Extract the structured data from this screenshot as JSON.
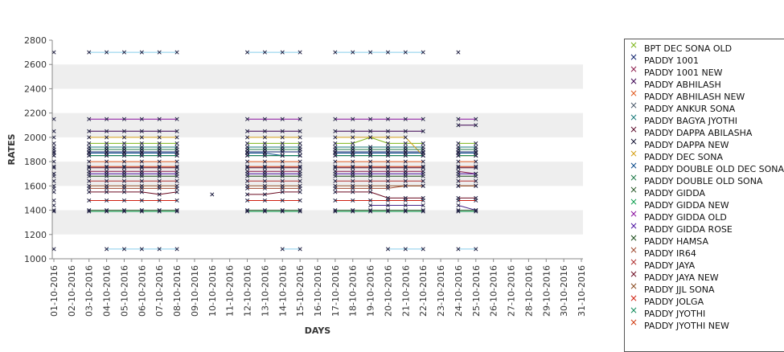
{
  "chart_data": {
    "type": "line",
    "xlabel": "DAYS",
    "ylabel": "RATES",
    "ylim": [
      1000,
      2800
    ],
    "yticks": [
      "1000",
      "1200",
      "1400",
      "1600",
      "1800",
      "2000",
      "2200",
      "2400",
      "2600",
      "2800"
    ],
    "grid": "alternating horizontal bands",
    "legend_position": "right",
    "marker": "×",
    "band_color": "#eeeeee",
    "categories": [
      "01-10-2016",
      "02-10-2016",
      "03-10-2016",
      "04-10-2016",
      "05-10-2016",
      "06-10-2016",
      "07-10-2016",
      "08-10-2016",
      "09-10-2016",
      "10-10-2016",
      "11-10-2016",
      "12-10-2016",
      "13-10-2016",
      "14-10-2016",
      "15-10-2016",
      "16-10-2016",
      "17-10-2016",
      "18-10-2016",
      "19-10-2016",
      "20-10-2016",
      "21-10-2016",
      "22-10-2016",
      "23-10-2016",
      "24-10-2016",
      "25-10-2016",
      "26-10-2016",
      "27-10-2016",
      "28-10-2016",
      "29-10-2016",
      "30-10-2016",
      "31-10-2016"
    ],
    "series": [
      {
        "name": "BPT DEC SONA OLD",
        "color": "#7cb518",
        "values": [
          1950,
          null,
          1950,
          1950,
          1950,
          1950,
          1950,
          1950,
          null,
          null,
          null,
          1950,
          1950,
          1950,
          1950,
          null,
          1950,
          1950,
          2000,
          1950,
          1950,
          1950,
          null,
          1950,
          1950,
          null,
          null,
          null,
          null,
          null,
          null
        ]
      },
      {
        "name": "PADDY 1001",
        "color": "#0b1f6b",
        "values": [
          1880,
          null,
          1880,
          1880,
          1880,
          1880,
          1880,
          1880,
          null,
          null,
          null,
          1880,
          1880,
          1880,
          1880,
          null,
          1880,
          1880,
          1880,
          1880,
          1880,
          1880,
          null,
          1880,
          1880,
          null,
          null,
          null,
          null,
          null,
          null
        ]
      },
      {
        "name": "PADDY 1001 NEW",
        "color": "#8b1a4a",
        "values": [
          1700,
          null,
          1720,
          1720,
          1720,
          1720,
          1720,
          1720,
          null,
          null,
          null,
          1720,
          1720,
          1720,
          1720,
          null,
          1720,
          1720,
          1720,
          1720,
          1720,
          1720,
          null,
          1720,
          1700,
          null,
          null,
          null,
          null,
          null,
          null
        ]
      },
      {
        "name": "PADDY ABHILASH",
        "color": "#3a0050",
        "values": [
          2050,
          null,
          2050,
          2050,
          2050,
          2050,
          2050,
          2050,
          null,
          null,
          null,
          2050,
          2050,
          2050,
          2050,
          null,
          2050,
          2050,
          2050,
          2050,
          2050,
          2050,
          null,
          2100,
          2100,
          null,
          null,
          null,
          null,
          null,
          null
        ]
      },
      {
        "name": "PADDY ABHILASH NEW",
        "color": "#e05a20",
        "values": [
          1800,
          null,
          1800,
          1800,
          1800,
          1800,
          1800,
          1800,
          null,
          null,
          null,
          1800,
          1800,
          1800,
          1800,
          null,
          1800,
          1800,
          1800,
          1800,
          1800,
          1800,
          null,
          1800,
          1800,
          null,
          null,
          null,
          null,
          null,
          null
        ]
      },
      {
        "name": "PADDY ANKUR SONA",
        "color": "#4b5a6b",
        "values": [
          1900,
          null,
          1900,
          1900,
          1900,
          1900,
          1900,
          1900,
          null,
          null,
          null,
          1900,
          1900,
          1900,
          1900,
          null,
          1900,
          1900,
          1900,
          1900,
          1900,
          1900,
          null,
          1900,
          1900,
          null,
          null,
          null,
          null,
          null,
          null
        ]
      },
      {
        "name": "PADDY BAGYA JYOTHI",
        "color": "#1a7a7a",
        "values": [
          1920,
          null,
          1920,
          1920,
          1920,
          1920,
          1920,
          1920,
          null,
          null,
          null,
          1920,
          1920,
          1920,
          1920,
          null,
          1920,
          1920,
          1920,
          1920,
          1920,
          1920,
          null,
          1920,
          1920,
          null,
          null,
          null,
          null,
          null,
          null
        ]
      },
      {
        "name": "PADDY DAPPA ABILASHA",
        "color": "#5a0a2a",
        "values": [
          1750,
          null,
          1750,
          1750,
          1750,
          1750,
          1750,
          1750,
          null,
          null,
          null,
          1750,
          1750,
          1750,
          1750,
          null,
          1750,
          1750,
          1750,
          1750,
          1750,
          1750,
          null,
          1750,
          1750,
          null,
          null,
          null,
          null,
          null,
          null
        ]
      },
      {
        "name": "PADDY DAPPA NEW",
        "color": "#101030",
        "values": [
          1850,
          null,
          1850,
          1850,
          1850,
          1850,
          1850,
          1850,
          null,
          null,
          null,
          1850,
          1850,
          1850,
          1850,
          null,
          1850,
          1850,
          1850,
          1850,
          1850,
          1850,
          null,
          1850,
          1850,
          null,
          null,
          null,
          null,
          null,
          null
        ]
      },
      {
        "name": "PADDY DEC SONA",
        "color": "#d4a017",
        "values": [
          2000,
          null,
          2000,
          2000,
          2000,
          2000,
          2000,
          2000,
          null,
          null,
          null,
          2000,
          2000,
          2000,
          2000,
          null,
          2000,
          2000,
          2000,
          2000,
          2000,
          1850,
          null,
          1850,
          1850,
          null,
          null,
          null,
          null,
          null,
          null
        ]
      },
      {
        "name": "PADDY DOUBLE OLD DEC SONA",
        "color": "#0a4a8a",
        "values": [
          1870,
          null,
          1870,
          1870,
          1870,
          1870,
          1870,
          1870,
          null,
          null,
          null,
          1870,
          1870,
          1850,
          1850,
          null,
          1870,
          1870,
          1870,
          1870,
          1870,
          1870,
          null,
          1870,
          1870,
          null,
          null,
          null,
          null,
          null,
          null
        ]
      },
      {
        "name": "PADDY DOUBLE OLD SONA",
        "color": "#207a4a",
        "values": [
          1900,
          null,
          1900,
          1900,
          1900,
          1900,
          1900,
          1900,
          null,
          null,
          null,
          1900,
          1900,
          1900,
          1900,
          null,
          1900,
          1900,
          1900,
          1900,
          1900,
          1900,
          null,
          1900,
          1900,
          null,
          null,
          null,
          null,
          null,
          null
        ]
      },
      {
        "name": "PADDY GIDDA",
        "color": "#2a5a2a",
        "values": [
          1400,
          null,
          1400,
          1400,
          1400,
          1400,
          1400,
          1400,
          null,
          null,
          null,
          1400,
          1400,
          1400,
          1400,
          null,
          1400,
          1400,
          1400,
          1400,
          1400,
          1400,
          null,
          1400,
          1400,
          null,
          null,
          null,
          null,
          null,
          null
        ]
      },
      {
        "name": "PADDY GIDDA NEW",
        "color": "#10a050",
        "values": [
          1390,
          null,
          1390,
          1390,
          1390,
          1390,
          1390,
          1390,
          null,
          null,
          null,
          1390,
          1390,
          1390,
          1390,
          null,
          1390,
          1390,
          1390,
          1390,
          1390,
          1390,
          null,
          1390,
          1390,
          null,
          null,
          null,
          null,
          null,
          null
        ]
      },
      {
        "name": "PADDY GIDDA OLD",
        "color": "#8a10a0",
        "values": [
          2150,
          null,
          2150,
          2150,
          2150,
          2150,
          2150,
          2150,
          null,
          null,
          null,
          2150,
          2150,
          2150,
          2150,
          null,
          2150,
          2150,
          2150,
          2150,
          2150,
          2150,
          null,
          2150,
          2150,
          null,
          null,
          null,
          null,
          null,
          null
        ]
      },
      {
        "name": "PADDY GIDDA ROSE",
        "color": "#4a10a0",
        "values": [
          1700,
          null,
          1700,
          1700,
          1700,
          1700,
          1700,
          1700,
          null,
          null,
          null,
          1700,
          1700,
          1700,
          1700,
          null,
          1700,
          1700,
          1700,
          1700,
          1700,
          1700,
          null,
          1700,
          1700,
          null,
          null,
          null,
          null,
          null,
          null
        ]
      },
      {
        "name": "PADDY HAMSA",
        "color": "#1a4a1a",
        "values": [
          1680,
          null,
          1680,
          1680,
          1680,
          1680,
          1680,
          1680,
          null,
          null,
          null,
          1680,
          1680,
          1680,
          1680,
          null,
          1680,
          1680,
          1680,
          1680,
          1680,
          1680,
          null,
          1680,
          1680,
          null,
          null,
          null,
          null,
          null,
          null
        ]
      },
      {
        "name": "PADDY IR64",
        "color": "#a04a30",
        "values": [
          1580,
          null,
          1580,
          1580,
          1580,
          1580,
          1580,
          1580,
          null,
          null,
          null,
          1580,
          1580,
          1580,
          1580,
          null,
          1580,
          1580,
          1580,
          1580,
          1600,
          1600,
          null,
          1600,
          1600,
          null,
          null,
          null,
          null,
          null,
          null
        ]
      },
      {
        "name": "PADDY JAYA",
        "color": "#b03030",
        "values": [
          1640,
          null,
          1640,
          1640,
          1640,
          1640,
          1640,
          1640,
          null,
          null,
          null,
          1640,
          1640,
          1640,
          1640,
          null,
          1640,
          1640,
          1640,
          1640,
          1640,
          1640,
          null,
          1640,
          1640,
          null,
          null,
          null,
          null,
          null,
          null
        ]
      },
      {
        "name": "PADDY JAYA NEW",
        "color": "#6a0a20",
        "values": [
          1550,
          null,
          1550,
          1550,
          1550,
          1550,
          1530,
          1550,
          null,
          1530,
          null,
          1530,
          1530,
          1550,
          1550,
          null,
          1550,
          1550,
          1550,
          1500,
          1500,
          1500,
          null,
          1500,
          1500,
          null,
          null,
          null,
          null,
          null,
          null
        ]
      },
      {
        "name": "PADDY JJL SONA",
        "color": "#8a4a20",
        "values": [
          1600,
          null,
          1600,
          1600,
          1600,
          1600,
          1600,
          1600,
          null,
          null,
          null,
          1600,
          1600,
          1600,
          1600,
          null,
          1600,
          1600,
          1600,
          1600,
          1600,
          1600,
          null,
          1600,
          1600,
          null,
          null,
          null,
          null,
          null,
          null
        ]
      },
      {
        "name": "PADDY JOLGA",
        "color": "#d02010",
        "values": [
          1480,
          null,
          1480,
          1480,
          1480,
          1480,
          1480,
          1480,
          null,
          null,
          null,
          1480,
          1480,
          1480,
          1480,
          null,
          1480,
          1480,
          1480,
          1480,
          1480,
          1480,
          null,
          1480,
          1480,
          null,
          null,
          null,
          null,
          null,
          null
        ]
      },
      {
        "name": "PADDY JYOTHI",
        "color": "#108a5a",
        "values": [
          1850,
          null,
          1850,
          1850,
          1850,
          1850,
          1850,
          1850,
          null,
          null,
          null,
          1850,
          1850,
          1850,
          1850,
          null,
          1850,
          1850,
          1850,
          1850,
          1850,
          1850,
          null,
          1850,
          1850,
          null,
          null,
          null,
          null,
          null,
          null
        ]
      },
      {
        "name": "PADDY JYOTHI NEW",
        "color": "#d03a10",
        "values": [
          1760,
          null,
          1760,
          1760,
          1760,
          1760,
          1760,
          1760,
          null,
          null,
          null,
          1760,
          1760,
          1760,
          1760,
          null,
          1760,
          1760,
          1760,
          1760,
          1760,
          1760,
          null,
          1760,
          1760,
          null,
          null,
          null,
          null,
          null,
          null
        ]
      },
      {
        "name": "",
        "color": "#87ceeb",
        "values": [
          2700,
          null,
          2700,
          2700,
          2700,
          2700,
          2700,
          2700,
          null,
          null,
          null,
          2700,
          2700,
          2700,
          2700,
          null,
          2700,
          2700,
          2700,
          2700,
          2700,
          2700,
          null,
          2700,
          null,
          null,
          null,
          null,
          null,
          null,
          null
        ]
      },
      {
        "name": "",
        "color": "#87ceeb",
        "values": [
          1080,
          null,
          null,
          1080,
          1080,
          1080,
          1080,
          1080,
          null,
          null,
          null,
          null,
          null,
          1080,
          1080,
          null,
          null,
          null,
          null,
          1080,
          1080,
          1080,
          null,
          1080,
          1080,
          null,
          null,
          null,
          null,
          null,
          null
        ]
      },
      {
        "name": "",
        "color": "#4a2a8a",
        "values": [
          1440,
          null,
          null,
          null,
          null,
          null,
          null,
          null,
          null,
          null,
          null,
          null,
          null,
          null,
          null,
          null,
          null,
          null,
          1440,
          1440,
          1440,
          1440,
          null,
          1440,
          1400,
          null,
          null,
          null,
          null,
          null,
          null
        ]
      }
    ]
  }
}
